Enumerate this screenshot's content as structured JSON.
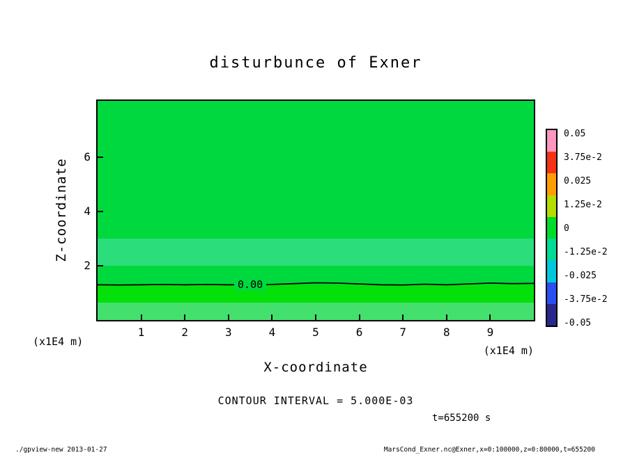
{
  "title": "disturbunce of Exner",
  "x_axis": {
    "label": "X-coordinate",
    "unit": "(x1E4 m)",
    "ticks": [
      "1",
      "2",
      "3",
      "4",
      "5",
      "6",
      "7",
      "8",
      "9"
    ],
    "range": [
      0,
      10
    ]
  },
  "z_axis": {
    "label": "Z-coordinate",
    "unit": "(x1E4 m)",
    "ticks": [
      "2",
      "4",
      "6"
    ],
    "range": [
      0,
      8.07
    ]
  },
  "colorbar": {
    "labels": [
      "0.05",
      "3.75e-2",
      "0.025",
      "1.25e-2",
      "0",
      "-1.25e-2",
      "-0.025",
      "-3.75e-2",
      "-0.05"
    ],
    "colors": [
      "#ff96be",
      "#f53214",
      "#ff9e00",
      "#b4dc00",
      "#00dc28",
      "#00dc96",
      "#00c8dc",
      "#2850f0",
      "#28288c"
    ]
  },
  "annotations": {
    "contour_interval": "CONTOUR INTERVAL = 5.000E-03",
    "time": "t=655200 s"
  },
  "footer": {
    "left": "./gpview-new  2013-01-27",
    "right": "MarsCond_Exner.nc@Exner,x=0:100000,z=0:80000,t=655200"
  },
  "chart_data": {
    "type": "heatmap",
    "title": "disturbunce of Exner",
    "xlabel": "X-coordinate (x1E4 m)",
    "ylabel": "Z-coordinate (x1E4 m)",
    "x_range": [
      0,
      10
    ],
    "z_range": [
      0,
      8.07
    ],
    "x_ticks": [
      1,
      2,
      3,
      4,
      5,
      6,
      7,
      8,
      9
    ],
    "z_ticks": [
      2,
      4,
      6
    ],
    "contour_interval": 0.005,
    "colorbar_levels": [
      0.05,
      0.0375,
      0.025,
      0.0125,
      0,
      -0.0125,
      -0.025,
      -0.0375,
      -0.05
    ],
    "fill_bands": [
      {
        "z_from": 3.0,
        "z_to": 8.07,
        "color": "#00d93e"
      },
      {
        "z_from": 2.0,
        "z_to": 3.0,
        "color": "#2cdd7c"
      },
      {
        "z_from": 1.3,
        "z_to": 2.0,
        "color": "#00d93e"
      },
      {
        "z_from": 0.65,
        "z_to": 1.3,
        "color": "#04e00a"
      },
      {
        "z_from": 0.0,
        "z_to": 0.65,
        "color": "#44e06e"
      }
    ],
    "zero_contour": {
      "label": "0.00",
      "label_x": 3.5,
      "label_z": 1.3,
      "points": [
        [
          0,
          1.3
        ],
        [
          0.5,
          1.29
        ],
        [
          1,
          1.3
        ],
        [
          1.5,
          1.31
        ],
        [
          2,
          1.3
        ],
        [
          2.5,
          1.31
        ],
        [
          3,
          1.3
        ],
        [
          3.5,
          1.3
        ],
        [
          4,
          1.31
        ],
        [
          4.5,
          1.34
        ],
        [
          5,
          1.37
        ],
        [
          5.5,
          1.36
        ],
        [
          6,
          1.33
        ],
        [
          6.5,
          1.3
        ],
        [
          7,
          1.29
        ],
        [
          7.5,
          1.32
        ],
        [
          8,
          1.3
        ],
        [
          8.5,
          1.33
        ],
        [
          9,
          1.36
        ],
        [
          9.5,
          1.34
        ],
        [
          10,
          1.35
        ]
      ]
    }
  }
}
